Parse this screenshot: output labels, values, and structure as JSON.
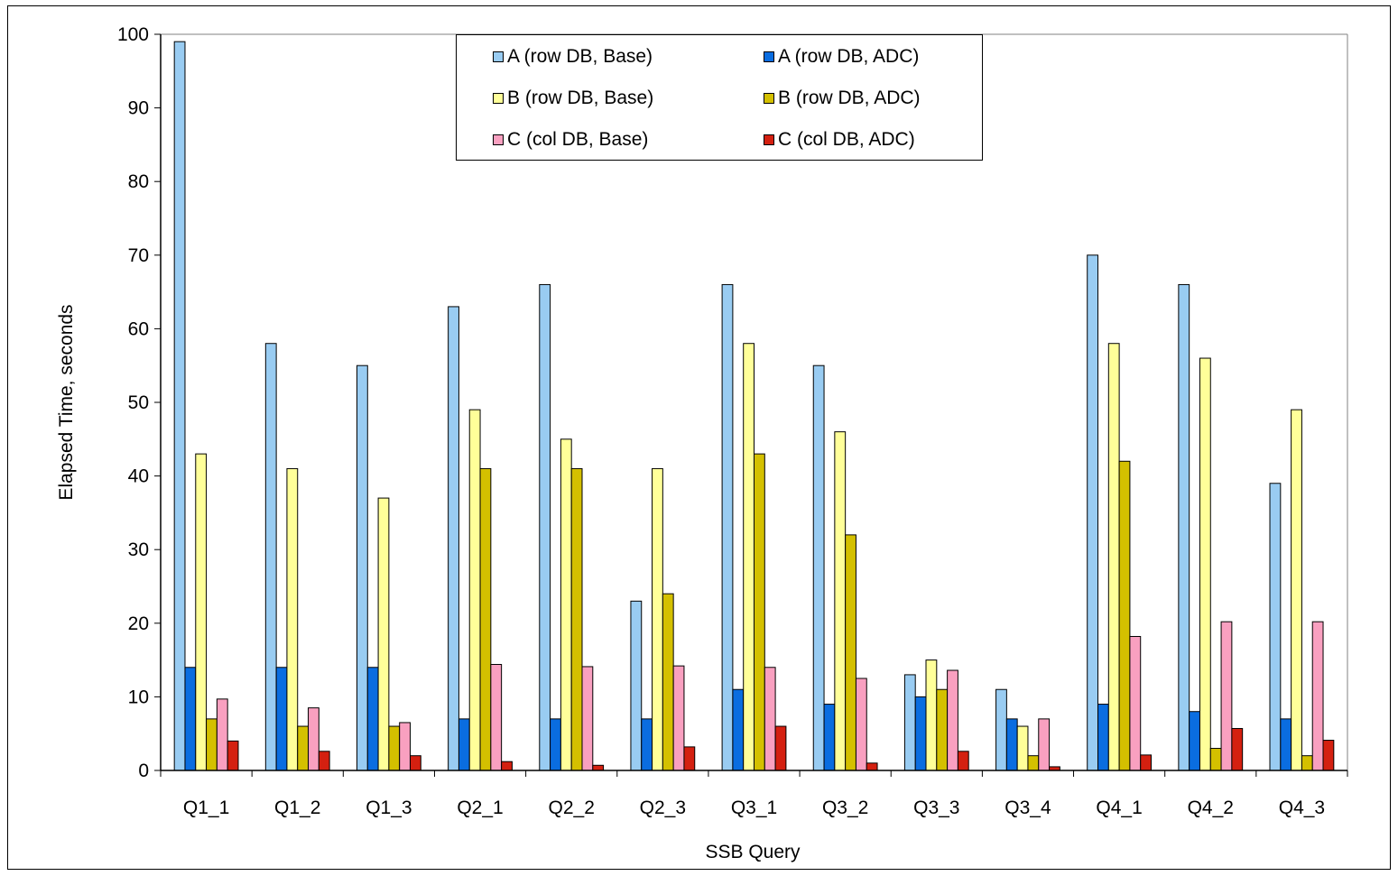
{
  "chart_data": {
    "type": "bar",
    "title": "",
    "xlabel": "SSB Query",
    "ylabel": "Elapsed Time, seconds",
    "ylim": [
      0,
      100
    ],
    "yticks": [
      0,
      10,
      20,
      30,
      40,
      50,
      60,
      70,
      80,
      90,
      100
    ],
    "grid": false,
    "legend_position": "top-center",
    "categories": [
      "Q1_1",
      "Q1_2",
      "Q1_3",
      "Q2_1",
      "Q2_2",
      "Q2_3",
      "Q3_1",
      "Q3_2",
      "Q3_3",
      "Q3_4",
      "Q4_1",
      "Q4_2",
      "Q4_3"
    ],
    "series": [
      {
        "name": "A (row DB, Base)",
        "color": "#99ccf2",
        "values": [
          99,
          58,
          55,
          63,
          66,
          23,
          66,
          55,
          13,
          11,
          70,
          66,
          39
        ]
      },
      {
        "name": "A (row DB, ADC)",
        "color": "#0a6de0",
        "values": [
          14,
          14,
          14,
          7,
          7,
          7,
          11,
          9,
          10,
          7,
          9,
          8,
          7
        ]
      },
      {
        "name": "B (row DB, Base)",
        "color": "#ffff99",
        "values": [
          43,
          41,
          37,
          49,
          45,
          41,
          58,
          46,
          15,
          6,
          58,
          56,
          49
        ]
      },
      {
        "name": "B (row DB, ADC)",
        "color": "#d4c000",
        "values": [
          7,
          6,
          6,
          41,
          41,
          24,
          43,
          32,
          11,
          2,
          42,
          3,
          2
        ]
      },
      {
        "name": "C (col DB, Base)",
        "color": "#f9a0c0",
        "values": [
          9.7,
          8.5,
          6.5,
          14.4,
          14.1,
          14.2,
          14,
          12.5,
          13.6,
          7,
          18.2,
          20.2,
          20.2
        ]
      },
      {
        "name": "C (col DB, ADC)",
        "color": "#d42010",
        "values": [
          4,
          2.6,
          2,
          1.2,
          0.7,
          3.2,
          6,
          1,
          2.6,
          0.5,
          2.1,
          5.7,
          4.1
        ]
      }
    ]
  }
}
